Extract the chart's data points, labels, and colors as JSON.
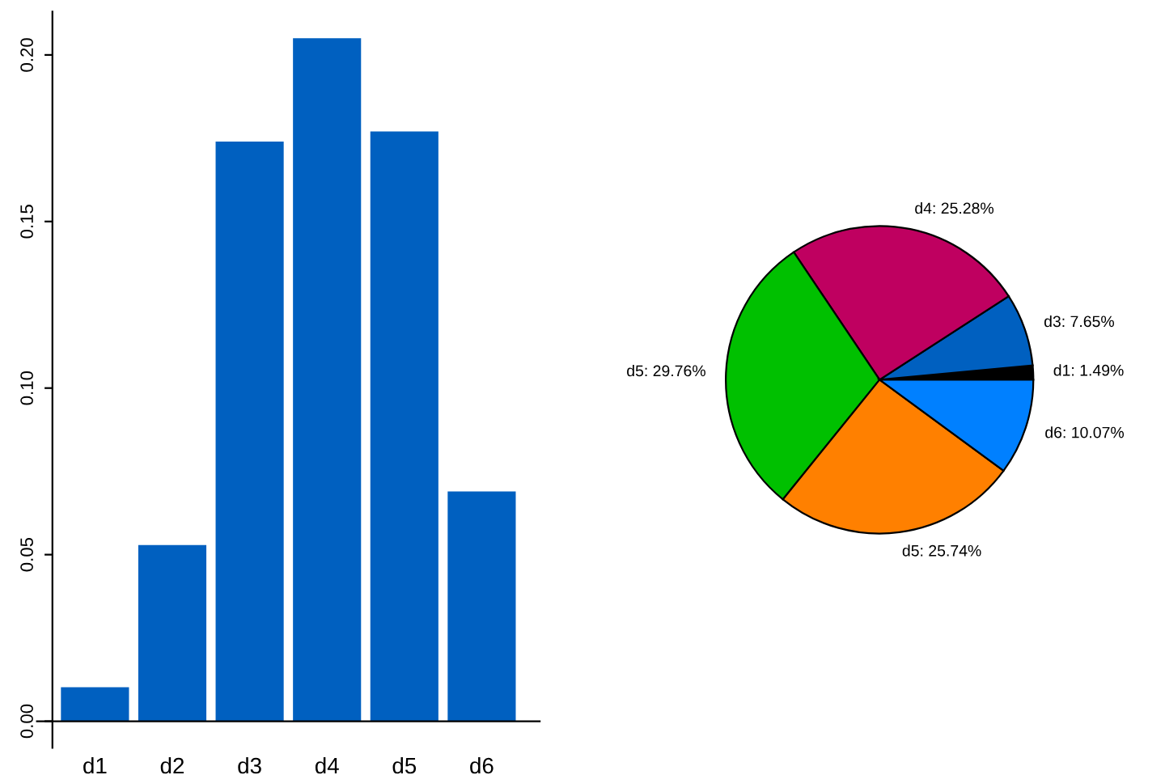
{
  "chart_data": [
    {
      "type": "bar",
      "categories": [
        "d1",
        "d2",
        "d3",
        "d4",
        "d5",
        "d6"
      ],
      "values": [
        0.0102,
        0.0529,
        0.174,
        0.205,
        0.177,
        0.069
      ],
      "color": "#0060c0",
      "ylim": [
        -0.008,
        0.213
      ],
      "yticks": [
        {
          "value": 0,
          "label": "0.00"
        },
        0.05,
        {
          "value": 0.1,
          "label": "0.10"
        },
        0.15,
        {
          "value": 0.2,
          "label": "0.20"
        }
      ],
      "grid": false,
      "legend": false
    },
    {
      "type": "pie",
      "categories": [
        "d1: 1.49%",
        "d3: 7.65%",
        "d4: 25.28%",
        "d5: 29.76%",
        "d5: 25.74%",
        "d6: 10.07%"
      ],
      "values": [
        1.49,
        7.65,
        25.28,
        29.76,
        25.74,
        10.07
      ],
      "colors": [
        "#000000",
        "#0060c0",
        "#bf0060",
        "#00c000",
        "#ff8000",
        "#0080ff"
      ],
      "legend": false
    }
  ]
}
